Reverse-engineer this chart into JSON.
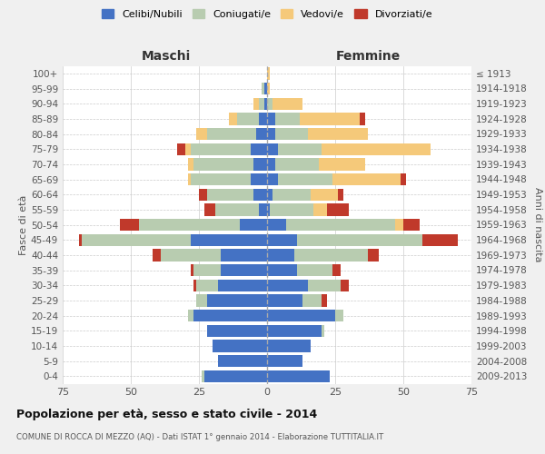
{
  "age_groups_bottom_to_top": [
    "0-4",
    "5-9",
    "10-14",
    "15-19",
    "20-24",
    "25-29",
    "30-34",
    "35-39",
    "40-44",
    "45-49",
    "50-54",
    "55-59",
    "60-64",
    "65-69",
    "70-74",
    "75-79",
    "80-84",
    "85-89",
    "90-94",
    "95-99",
    "100+"
  ],
  "birth_years_bottom_to_top": [
    "2009-2013",
    "2004-2008",
    "1999-2003",
    "1994-1998",
    "1989-1993",
    "1984-1988",
    "1979-1983",
    "1974-1978",
    "1969-1973",
    "1964-1968",
    "1959-1963",
    "1954-1958",
    "1949-1953",
    "1944-1948",
    "1939-1943",
    "1934-1938",
    "1929-1933",
    "1924-1928",
    "1919-1923",
    "1914-1918",
    "≤ 1913"
  ],
  "males": {
    "celibi": [
      23,
      18,
      20,
      22,
      27,
      22,
      18,
      17,
      17,
      28,
      10,
      3,
      5,
      6,
      5,
      6,
      4,
      3,
      1,
      1,
      0
    ],
    "coniugati": [
      1,
      0,
      0,
      0,
      2,
      4,
      8,
      10,
      22,
      40,
      37,
      16,
      17,
      22,
      22,
      22,
      18,
      8,
      2,
      1,
      0
    ],
    "vedovi": [
      0,
      0,
      0,
      0,
      0,
      0,
      0,
      0,
      0,
      0,
      0,
      0,
      0,
      1,
      2,
      2,
      4,
      3,
      2,
      0,
      0
    ],
    "divorziati": [
      0,
      0,
      0,
      0,
      0,
      0,
      1,
      1,
      3,
      1,
      7,
      4,
      3,
      0,
      0,
      3,
      0,
      0,
      0,
      0,
      0
    ]
  },
  "females": {
    "nubili": [
      23,
      13,
      16,
      20,
      25,
      13,
      15,
      11,
      10,
      11,
      7,
      1,
      2,
      4,
      3,
      4,
      3,
      3,
      0,
      0,
      0
    ],
    "coniugate": [
      0,
      0,
      0,
      1,
      3,
      7,
      12,
      13,
      27,
      46,
      40,
      16,
      14,
      20,
      16,
      16,
      12,
      9,
      2,
      0,
      0
    ],
    "vedove": [
      0,
      0,
      0,
      0,
      0,
      0,
      0,
      0,
      0,
      0,
      3,
      5,
      10,
      25,
      17,
      40,
      22,
      22,
      11,
      1,
      1
    ],
    "divorziate": [
      0,
      0,
      0,
      0,
      0,
      2,
      3,
      3,
      4,
      13,
      6,
      8,
      2,
      2,
      0,
      0,
      0,
      2,
      0,
      0,
      0
    ]
  },
  "colors": {
    "celibi_nubili": "#4472C4",
    "coniugati": "#B8CCB0",
    "vedovi": "#F5C97A",
    "divorziati": "#C0392B"
  },
  "xlim": 75,
  "title": "Popolazione per età, sesso e stato civile - 2014",
  "subtitle": "COMUNE DI ROCCA DI MEZZO (AQ) - Dati ISTAT 1° gennaio 2014 - Elaborazione TUTTITALIA.IT",
  "ylabel_left": "Fasce di età",
  "ylabel_right": "Anni di nascita",
  "xlabel_left": "Maschi",
  "xlabel_right": "Femmine",
  "background_color": "#f0f0f0",
  "plot_background": "#ffffff"
}
